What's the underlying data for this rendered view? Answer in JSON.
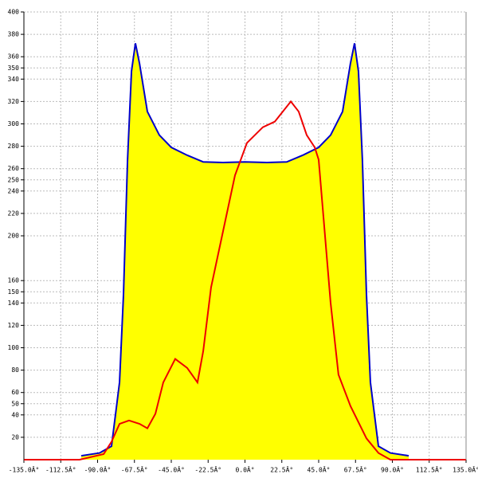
{
  "chart_data": {
    "type": "area",
    "xlim": [
      -135,
      135
    ],
    "ylim": [
      0,
      400
    ],
    "xticks": [
      {
        "value": -135,
        "label": "-135.0Â°"
      },
      {
        "value": -112.5,
        "label": "-112.5Â°"
      },
      {
        "value": -90,
        "label": "-90.0Â°"
      },
      {
        "value": -67.5,
        "label": "-67.5Â°"
      },
      {
        "value": -45,
        "label": "-45.0Â°"
      },
      {
        "value": -22.5,
        "label": "-22.5Â°"
      },
      {
        "value": 0,
        "label": "0.0Â°"
      },
      {
        "value": 22.5,
        "label": "22.5Â°"
      },
      {
        "value": 45,
        "label": "45.0Â°"
      },
      {
        "value": 67.5,
        "label": "67.5Â°"
      },
      {
        "value": 90,
        "label": "90.0Â°"
      },
      {
        "value": 112.5,
        "label": "112.5Â°"
      },
      {
        "value": 135,
        "label": "135.0Â°"
      }
    ],
    "yticks": [
      20,
      40,
      50,
      60,
      80,
      100,
      120,
      140,
      150,
      160,
      200,
      220,
      240,
      250,
      260,
      280,
      300,
      320,
      340,
      350,
      360,
      380,
      400
    ],
    "grid": true,
    "series": [
      {
        "color": "#0000cc",
        "fill": "#ffff00",
        "x": [
          -100,
          -88.8,
          -81.5,
          -76.6,
          -74.2,
          -71.7,
          -69.3,
          -66.9,
          -64.4,
          -59.6,
          -52.3,
          -45,
          -35.3,
          -25.5,
          -13.4,
          0,
          13.4,
          25.5,
          35.3,
          45,
          52.3,
          59.6,
          64.4,
          66.9,
          69.3,
          71.7,
          74.2,
          76.6,
          81.5,
          88.8,
          100
        ],
        "values": [
          3.5,
          6,
          12,
          69,
          147,
          268,
          347,
          372,
          354,
          311,
          290,
          279,
          272,
          266,
          265.5,
          266,
          265.5,
          266,
          272,
          279,
          290,
          311,
          354,
          372,
          347,
          268,
          147,
          69,
          12,
          6,
          3.5
        ]
      },
      {
        "color": "#ee0000",
        "x": [
          -135,
          -101,
          -86.3,
          -81.5,
          -76.6,
          -70.8,
          -64.4,
          -59.6,
          -54.7,
          -49.9,
          -42.6,
          -35.3,
          -29,
          -25.5,
          -20.7,
          -13.4,
          -6.1,
          1.2,
          10.9,
          18.2,
          28,
          32.8,
          37.7,
          42.6,
          45,
          47.4,
          52.3,
          57.1,
          64.4,
          74.2,
          81.5,
          88.8,
          135
        ],
        "values": [
          0,
          0,
          5,
          16,
          32,
          35,
          32,
          28,
          41,
          69,
          90,
          82,
          69,
          97,
          154,
          204,
          254,
          283,
          297,
          302,
          320,
          311,
          290,
          279,
          268,
          226,
          140,
          76,
          48,
          19,
          6,
          0,
          0
        ]
      }
    ]
  }
}
